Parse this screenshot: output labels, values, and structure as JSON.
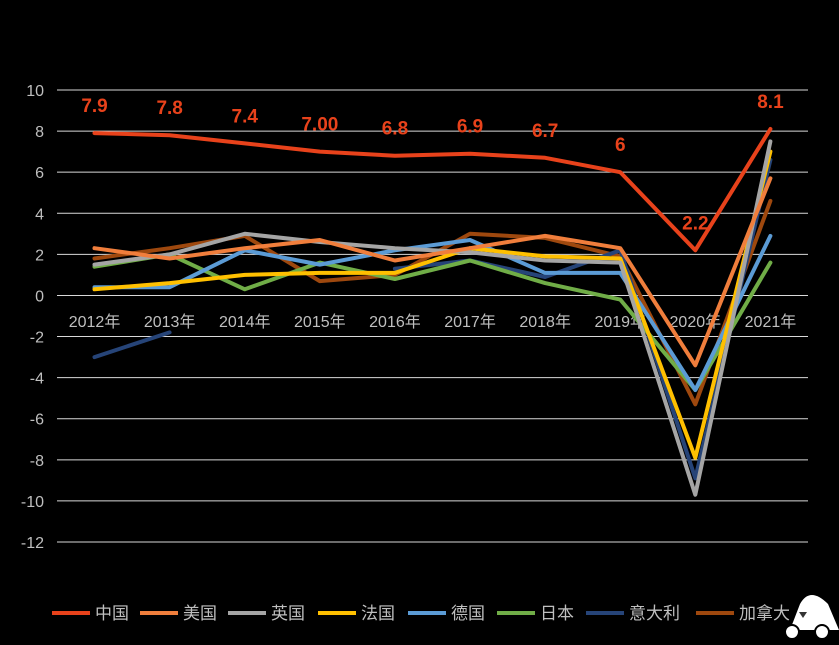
{
  "chart_data": {
    "type": "line",
    "title": "",
    "xlabel": "",
    "ylabel": "",
    "ylim": [
      -12,
      10
    ],
    "yticks": [
      10,
      8,
      6,
      4,
      2,
      0,
      -2,
      -4,
      -6,
      -8,
      -10,
      -12
    ],
    "grid": true,
    "legend_position": "bottom",
    "categories": [
      "2012年",
      "2013年",
      "2014年",
      "2015年",
      "2016年",
      "2017年",
      "2018年",
      "2019年",
      "2020年",
      "2021年"
    ],
    "series": [
      {
        "name": "中国",
        "color": "#e8421b",
        "values": [
          7.9,
          7.8,
          7.4,
          7.0,
          6.8,
          6.9,
          6.7,
          6.0,
          2.2,
          8.1
        ],
        "labels": [
          "7.9",
          "7.8",
          "7.4",
          "7.00",
          "6.8",
          "6.9",
          "6.7",
          "6",
          "2.2",
          "8.1"
        ]
      },
      {
        "name": "美国",
        "color": "#f07e3c",
        "values": [
          2.3,
          1.8,
          2.3,
          2.7,
          1.7,
          2.3,
          2.9,
          2.3,
          -3.4,
          5.7
        ]
      },
      {
        "name": "英国",
        "color": "#a5a5a5",
        "values": [
          1.5,
          2.0,
          3.0,
          2.6,
          2.3,
          2.1,
          1.7,
          1.6,
          -9.7,
          7.5
        ]
      },
      {
        "name": "法国",
        "color": "#ffc000",
        "values": [
          0.3,
          0.6,
          1.0,
          1.1,
          1.1,
          2.3,
          1.9,
          1.8,
          -7.9,
          7.0
        ]
      },
      {
        "name": "德国",
        "color": "#5b9bd5",
        "values": [
          0.4,
          0.4,
          2.2,
          1.5,
          2.2,
          2.7,
          1.1,
          1.1,
          -4.6,
          2.9
        ]
      },
      {
        "name": "日本",
        "color": "#70ad47",
        "values": [
          1.4,
          2.0,
          0.3,
          1.6,
          0.8,
          1.7,
          0.6,
          -0.2,
          -4.6,
          1.6
        ]
      },
      {
        "name": "意大利",
        "color": "#264478",
        "values": [
          -3.0,
          -1.8,
          null,
          null,
          1.3,
          1.7,
          0.9,
          2.2,
          -8.9,
          6.6
        ]
      },
      {
        "name": "加拿大",
        "color": "#9e480e",
        "values": [
          1.8,
          2.3,
          2.9,
          0.7,
          1.0,
          3.0,
          2.8,
          1.9,
          -5.3,
          4.6
        ]
      }
    ]
  }
}
